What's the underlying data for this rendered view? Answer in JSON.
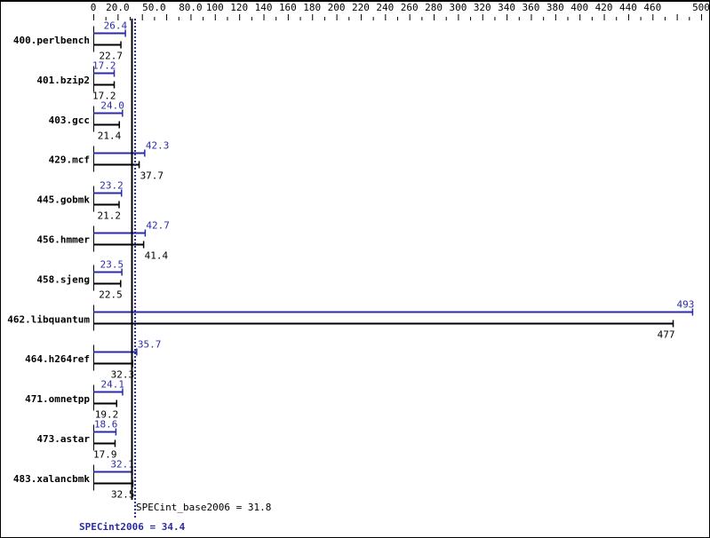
{
  "chart_data": {
    "type": "bar",
    "orientation": "horizontal",
    "xlim": [
      0,
      500
    ],
    "x_tick_labels": [
      "0",
      "20.0",
      "50.0",
      "80.0",
      "100",
      "120",
      "140",
      "160",
      "180",
      "200",
      "220",
      "240",
      "260",
      "280",
      "300",
      "320",
      "340",
      "360",
      "380",
      "400",
      "420",
      "440",
      "460",
      "500"
    ],
    "x_tick_values": [
      0,
      20,
      50,
      80,
      100,
      120,
      140,
      160,
      180,
      200,
      220,
      240,
      260,
      280,
      300,
      320,
      340,
      360,
      380,
      400,
      420,
      440,
      460,
      500
    ],
    "categories": [
      "400.perlbench",
      "401.bzip2",
      "403.gcc",
      "429.mcf",
      "445.gobmk",
      "456.hmmer",
      "458.sjeng",
      "462.libquantum",
      "464.h264ref",
      "471.omnetpp",
      "473.astar",
      "483.xalancbmk"
    ],
    "series": [
      {
        "name": "SPECint2006",
        "color": "#2b2ba8",
        "values": [
          26.4,
          17.2,
          24.0,
          42.3,
          23.2,
          42.7,
          23.5,
          493,
          35.7,
          24.1,
          18.6,
          32.1
        ],
        "labels": [
          "26.4",
          "17.2",
          "24.0",
          "42.3",
          "23.2",
          "42.7",
          "23.5",
          "493",
          "35.7",
          "24.1",
          "18.6",
          "32.1"
        ]
      },
      {
        "name": "SPECint_base2006",
        "color": "#000000",
        "values": [
          22.7,
          17.2,
          21.4,
          37.7,
          21.2,
          41.4,
          22.5,
          477,
          32.3,
          19.2,
          17.9,
          32.5
        ],
        "labels": [
          "22.7",
          "17.2",
          "21.4",
          "37.7",
          "21.2",
          "41.4",
          "22.5",
          "477",
          "32.3",
          "19.2",
          "17.9",
          "32.5"
        ]
      }
    ],
    "reference_lines": [
      {
        "label": "SPECint_base2006 = 31.8",
        "value": 31.8,
        "color": "#000000",
        "style": "solid"
      },
      {
        "label": "SPECint2006 = 34.4",
        "value": 34.4,
        "color": "#2b2ba8",
        "style": "dotted"
      }
    ]
  }
}
